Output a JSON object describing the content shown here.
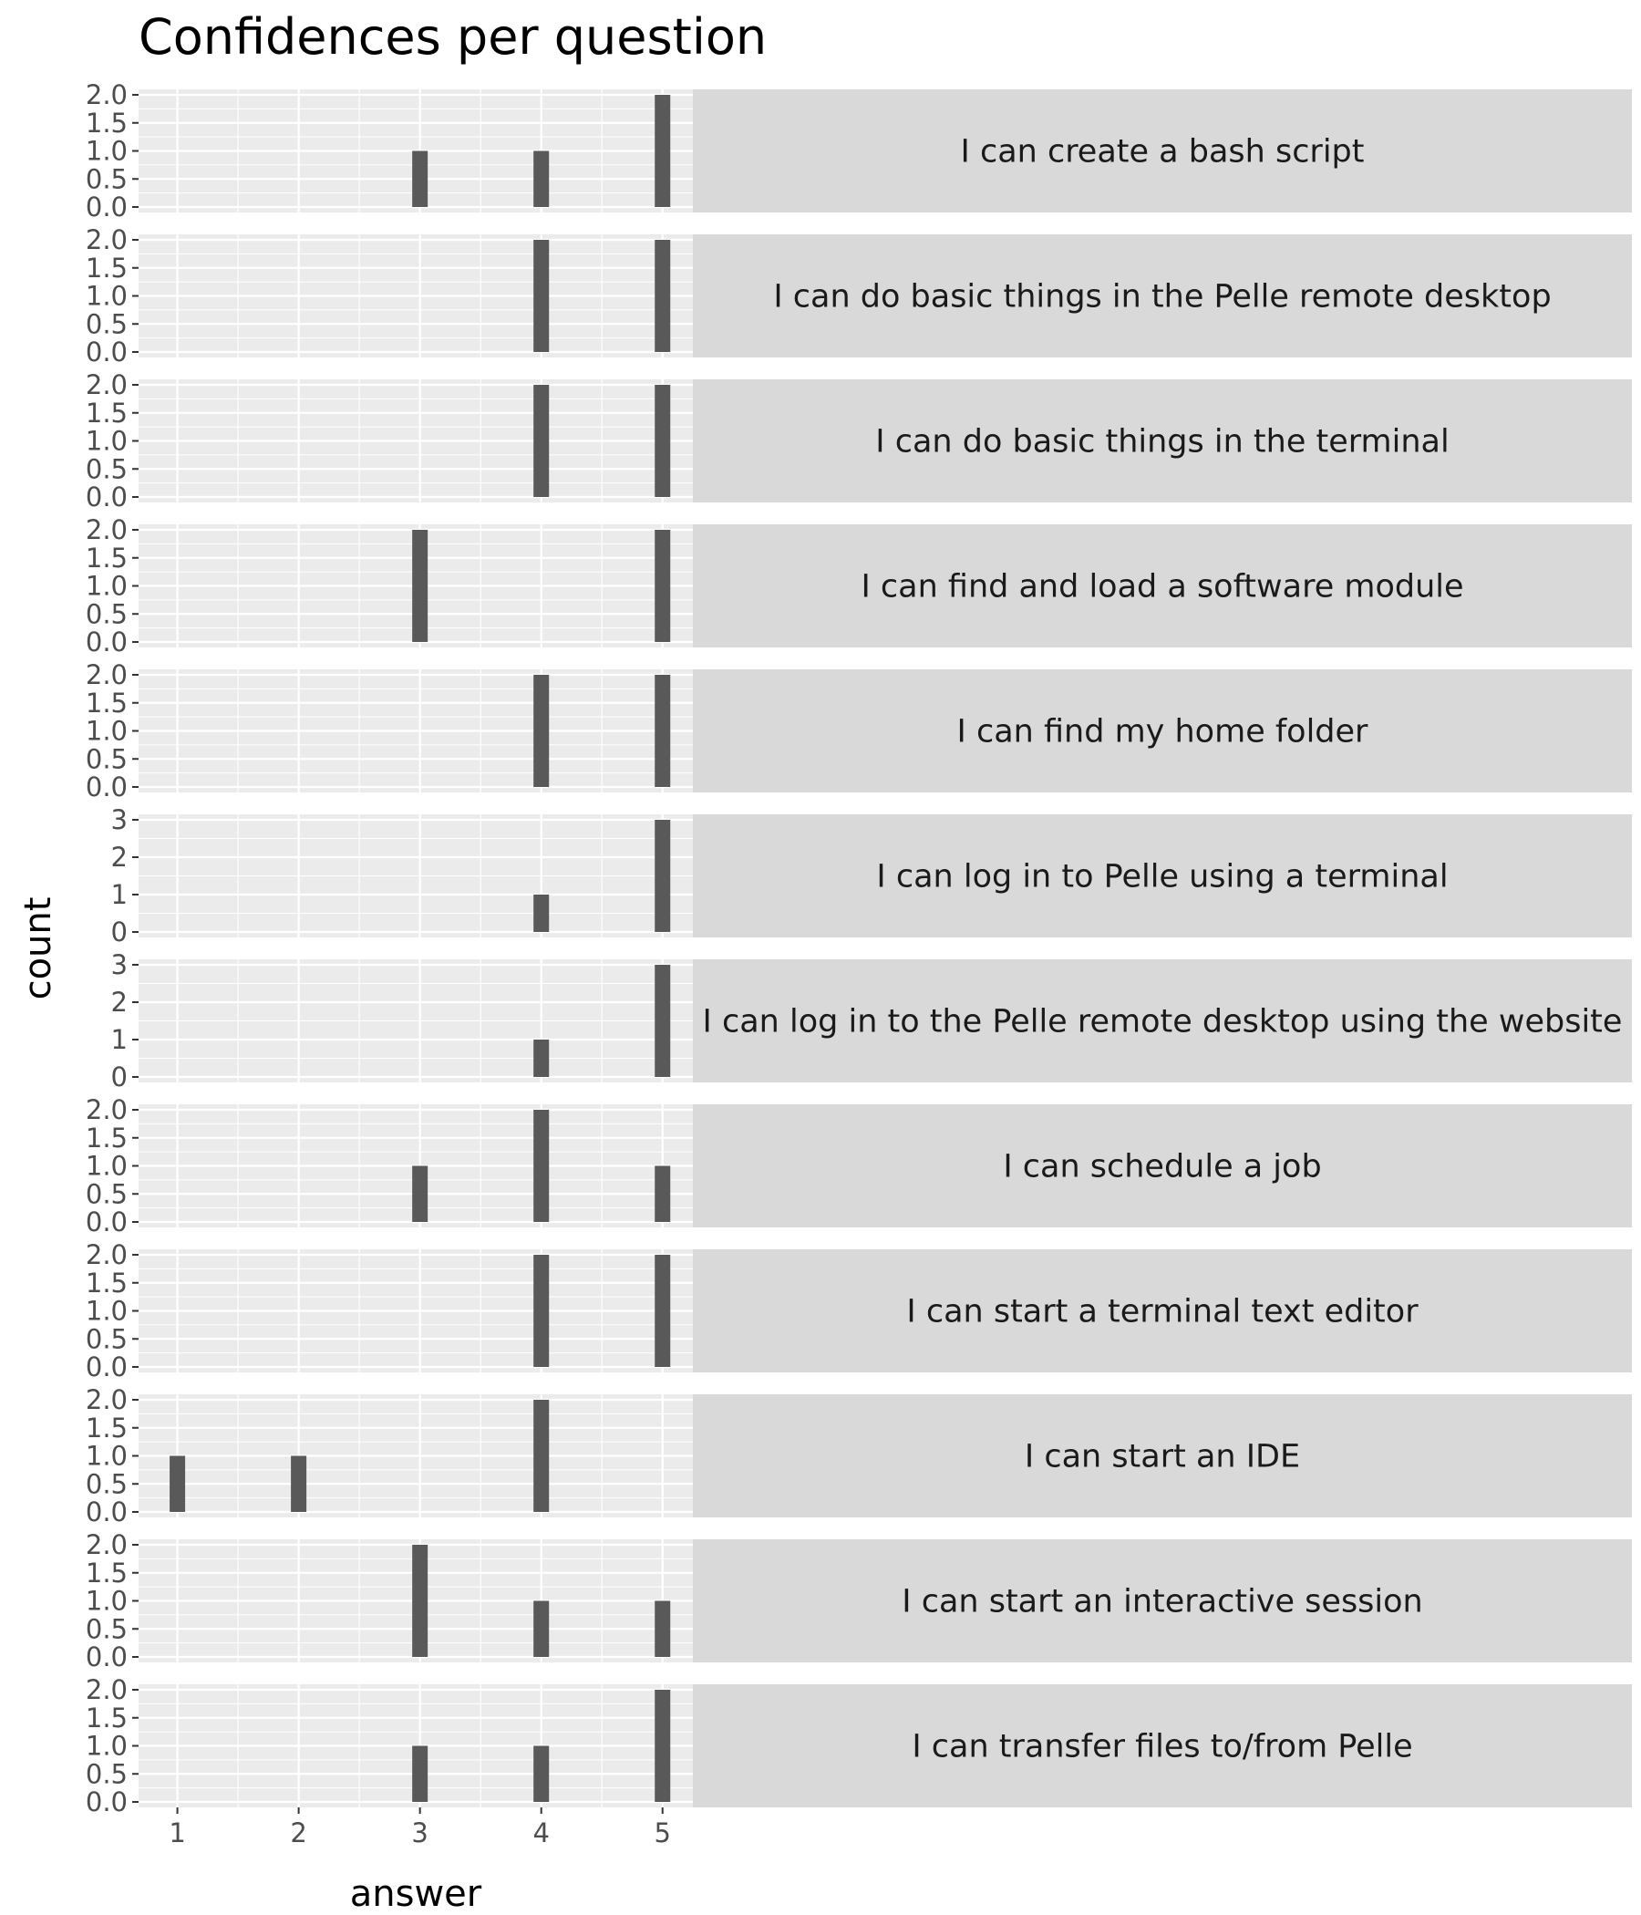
{
  "chart_data": {
    "type": "bar",
    "title": "Confidences per question",
    "xlabel": "answer",
    "ylabel": "count",
    "x_ticks": [
      "1",
      "2",
      "3",
      "4",
      "5"
    ],
    "xlim": [
      0.68,
      5.25
    ],
    "grid": true,
    "facets": [
      {
        "label": "I can create a bash script",
        "ylim": [
          0,
          2
        ],
        "y_ticks": [
          "0.0",
          "0.5",
          "1.0",
          "1.5",
          "2.0"
        ],
        "values": [
          0,
          0,
          1,
          1,
          2
        ]
      },
      {
        "label": "I can do basic things in the Pelle remote desktop",
        "ylim": [
          0,
          2
        ],
        "y_ticks": [
          "0.0",
          "0.5",
          "1.0",
          "1.5",
          "2.0"
        ],
        "values": [
          0,
          0,
          0,
          2,
          2
        ]
      },
      {
        "label": "I can do basic things in the terminal",
        "ylim": [
          0,
          2
        ],
        "y_ticks": [
          "0.0",
          "0.5",
          "1.0",
          "1.5",
          "2.0"
        ],
        "values": [
          0,
          0,
          0,
          2,
          2
        ]
      },
      {
        "label": "I can find and load a software module",
        "ylim": [
          0,
          2
        ],
        "y_ticks": [
          "0.0",
          "0.5",
          "1.0",
          "1.5",
          "2.0"
        ],
        "values": [
          0,
          0,
          2,
          0,
          2
        ]
      },
      {
        "label": "I can find my home folder",
        "ylim": [
          0,
          2
        ],
        "y_ticks": [
          "0.0",
          "0.5",
          "1.0",
          "1.5",
          "2.0"
        ],
        "values": [
          0,
          0,
          0,
          2,
          2
        ]
      },
      {
        "label": "I can log in to Pelle using a terminal",
        "ylim": [
          0,
          3
        ],
        "y_ticks": [
          "0",
          "1",
          "2",
          "3"
        ],
        "values": [
          0,
          0,
          0,
          1,
          3
        ]
      },
      {
        "label": "I can log in to the Pelle remote desktop using the website",
        "ylim": [
          0,
          3
        ],
        "y_ticks": [
          "0",
          "1",
          "2",
          "3"
        ],
        "values": [
          0,
          0,
          0,
          1,
          3
        ]
      },
      {
        "label": "I can schedule a job",
        "ylim": [
          0,
          2
        ],
        "y_ticks": [
          "0.0",
          "0.5",
          "1.0",
          "1.5",
          "2.0"
        ],
        "values": [
          0,
          0,
          1,
          2,
          1
        ]
      },
      {
        "label": "I can start a terminal text editor",
        "ylim": [
          0,
          2
        ],
        "y_ticks": [
          "0.0",
          "0.5",
          "1.0",
          "1.5",
          "2.0"
        ],
        "values": [
          0,
          0,
          0,
          2,
          2
        ]
      },
      {
        "label": "I can start an IDE",
        "ylim": [
          0,
          2
        ],
        "y_ticks": [
          "0.0",
          "0.5",
          "1.0",
          "1.5",
          "2.0"
        ],
        "values": [
          1,
          1,
          0,
          2,
          0
        ]
      },
      {
        "label": "I can start an interactive session",
        "ylim": [
          0,
          2
        ],
        "y_ticks": [
          "0.0",
          "0.5",
          "1.0",
          "1.5",
          "2.0"
        ],
        "values": [
          0,
          0,
          2,
          1,
          1
        ]
      },
      {
        "label": "I can transfer files to/from Pelle",
        "ylim": [
          0,
          2
        ],
        "y_ticks": [
          "0.0",
          "0.5",
          "1.0",
          "1.5",
          "2.0"
        ],
        "values": [
          0,
          0,
          1,
          1,
          2
        ]
      }
    ],
    "colors": {
      "bar": "#595959",
      "panel": "#ebebeb",
      "grid_major": "#ffffff",
      "strip": "#d9d9d9",
      "tick_text": "#4d4d4d",
      "strip_text": "#1a1a1a"
    }
  }
}
